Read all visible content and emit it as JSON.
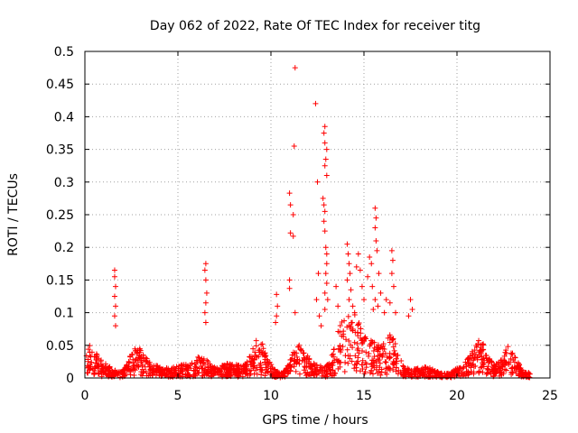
{
  "chart_data": {
    "type": "scatter",
    "title": "Day 062 of 2022, Rate Of TEC Index for receiver titg",
    "xlabel": "GPS time / hours",
    "ylabel": "ROTI / TECUs",
    "xlim": [
      0,
      25
    ],
    "ylim": [
      0,
      0.5
    ],
    "xticks": [
      0,
      5,
      10,
      15,
      20,
      25
    ],
    "yticks": [
      0,
      0.05,
      0.1,
      0.15,
      0.2,
      0.25,
      0.3,
      0.35,
      0.4,
      0.45,
      0.5
    ],
    "grid": true,
    "marker": "+",
    "color": "#ff0000",
    "series": [
      {
        "name": "ROTI",
        "points": [
          [
            1.6,
            0.165
          ],
          [
            1.6,
            0.155
          ],
          [
            1.65,
            0.14
          ],
          [
            1.6,
            0.125
          ],
          [
            1.65,
            0.11
          ],
          [
            1.6,
            0.095
          ],
          [
            1.65,
            0.08
          ],
          [
            6.5,
            0.175
          ],
          [
            6.45,
            0.165
          ],
          [
            6.5,
            0.15
          ],
          [
            6.55,
            0.13
          ],
          [
            6.5,
            0.115
          ],
          [
            6.45,
            0.1
          ],
          [
            6.5,
            0.085
          ],
          [
            10.3,
            0.128
          ],
          [
            10.35,
            0.11
          ],
          [
            10.3,
            0.095
          ],
          [
            10.25,
            0.085
          ],
          [
            11.0,
            0.283
          ],
          [
            11.05,
            0.265
          ],
          [
            11.2,
            0.25
          ],
          [
            11.05,
            0.222
          ],
          [
            11.2,
            0.217
          ],
          [
            11.0,
            0.15
          ],
          [
            11.0,
            0.137
          ],
          [
            11.3,
            0.1
          ],
          [
            11.3,
            0.475
          ],
          [
            11.25,
            0.355
          ],
          [
            12.4,
            0.42
          ],
          [
            12.5,
            0.3
          ],
          [
            12.55,
            0.16
          ],
          [
            12.45,
            0.12
          ],
          [
            12.6,
            0.095
          ],
          [
            12.9,
            0.385
          ],
          [
            12.85,
            0.375
          ],
          [
            12.9,
            0.36
          ],
          [
            13.0,
            0.35
          ],
          [
            12.95,
            0.335
          ],
          [
            12.9,
            0.325
          ],
          [
            13.0,
            0.31
          ],
          [
            12.8,
            0.275
          ],
          [
            12.85,
            0.265
          ],
          [
            12.9,
            0.255
          ],
          [
            12.85,
            0.24
          ],
          [
            12.9,
            0.225
          ],
          [
            12.95,
            0.2
          ],
          [
            13.0,
            0.19
          ],
          [
            13.0,
            0.175
          ],
          [
            12.95,
            0.16
          ],
          [
            13.0,
            0.145
          ],
          [
            12.9,
            0.13
          ],
          [
            13.05,
            0.12
          ],
          [
            12.9,
            0.105
          ],
          [
            12.7,
            0.08
          ],
          [
            13.5,
            0.14
          ],
          [
            13.6,
            0.11
          ],
          [
            14.1,
            0.205
          ],
          [
            14.15,
            0.19
          ],
          [
            14.2,
            0.175
          ],
          [
            14.25,
            0.16
          ],
          [
            14.1,
            0.15
          ],
          [
            14.3,
            0.135
          ],
          [
            14.2,
            0.12
          ],
          [
            14.4,
            0.11
          ],
          [
            14.6,
            0.17
          ],
          [
            14.7,
            0.19
          ],
          [
            14.8,
            0.165
          ],
          [
            14.9,
            0.14
          ],
          [
            15.0,
            0.12
          ],
          [
            14.5,
            0.1
          ],
          [
            15.3,
            0.185
          ],
          [
            15.4,
            0.175
          ],
          [
            15.2,
            0.155
          ],
          [
            15.45,
            0.14
          ],
          [
            15.6,
            0.12
          ],
          [
            15.5,
            0.105
          ],
          [
            15.6,
            0.26
          ],
          [
            15.65,
            0.245
          ],
          [
            15.6,
            0.23
          ],
          [
            15.65,
            0.21
          ],
          [
            15.7,
            0.195
          ],
          [
            15.8,
            0.16
          ],
          [
            15.9,
            0.13
          ],
          [
            15.75,
            0.11
          ],
          [
            16.2,
            0.12
          ],
          [
            16.1,
            0.1
          ],
          [
            16.5,
            0.195
          ],
          [
            16.55,
            0.18
          ],
          [
            16.5,
            0.16
          ],
          [
            16.6,
            0.14
          ],
          [
            16.4,
            0.115
          ],
          [
            16.7,
            0.1
          ],
          [
            17.5,
            0.12
          ],
          [
            17.6,
            0.105
          ],
          [
            17.4,
            0.095
          ]
        ]
      }
    ]
  }
}
